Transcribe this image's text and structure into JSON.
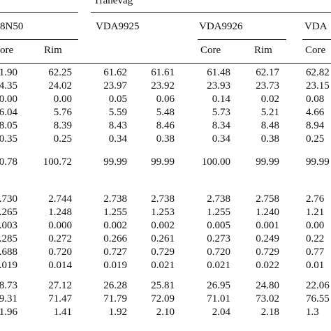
{
  "table": {
    "location_header": "Tranevåg",
    "samples": [
      "8N50",
      "VDA9925",
      "VDA9926",
      "VDA"
    ],
    "subheaders": {
      "s1": [
        "ore",
        "Rim"
      ],
      "s3": [
        "Core",
        "Rim"
      ],
      "s4": [
        "Core"
      ]
    },
    "block1": [
      [
        "1.90",
        "62.25",
        "61.62",
        "61.61",
        "61.48",
        "62.17",
        "62.82"
      ],
      [
        "4.35",
        "24.02",
        "23.97",
        "23.92",
        "23.93",
        "23.73",
        "23.15"
      ],
      [
        "0.00",
        "0.00",
        "0.05",
        "0.06",
        "0.14",
        "0.02",
        "0.08"
      ],
      [
        "6.04",
        "5.76",
        "5.59",
        "5.48",
        "5.73",
        "5.21",
        "4.66"
      ],
      [
        "8.05",
        "8.39",
        "8.43",
        "8.46",
        "8.34",
        "8.48",
        "8.94"
      ],
      [
        "0.35",
        "0.25",
        "0.34",
        "0.38",
        "0.34",
        "0.38",
        "0.25"
      ]
    ],
    "total": [
      "00.78",
      "100.72",
      "99.99",
      "99.99",
      "100.00",
      "99.99",
      "99.99"
    ],
    "block2": [
      [
        "2.730",
        "2.744",
        "2.738",
        "2.738",
        "2.738",
        "2.758",
        "2.76"
      ],
      [
        "1.265",
        "1.248",
        "1.255",
        "1.253",
        "1.255",
        "1.240",
        "1.21"
      ],
      [
        "0.003",
        "0.000",
        "0.002",
        "0.002",
        "0.005",
        "0.001",
        "0.00"
      ],
      [
        "0.285",
        "0.272",
        "0.266",
        "0.261",
        "0.273",
        "0.249",
        "0.22"
      ],
      [
        "0.688",
        "0.720",
        "0.727",
        "0.729",
        "0.720",
        "0.729",
        "0.77"
      ],
      [
        "0.019",
        "0.014",
        "0.019",
        "0.021",
        "0.021",
        "0.022",
        "0.01"
      ]
    ],
    "block3": [
      [
        "8.73",
        "27.12",
        "26.28",
        "25.81",
        "26.95",
        "24.80",
        "22.06"
      ],
      [
        "9.31",
        "71.47",
        "71.79",
        "72.09",
        "71.01",
        "73.02",
        "76.55"
      ],
      [
        "1.96",
        "1.41",
        "1.92",
        "2.10",
        "2.04",
        "2.18",
        "1.3"
      ]
    ]
  }
}
